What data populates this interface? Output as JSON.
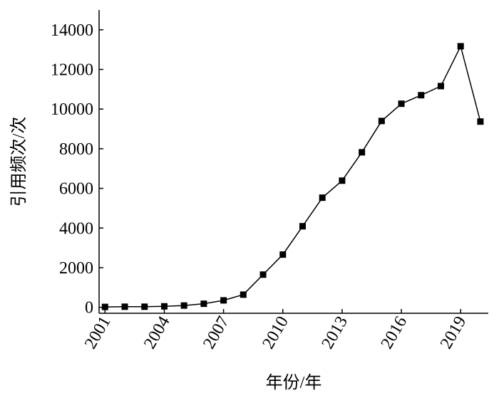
{
  "chart_data": {
    "type": "line",
    "x_label": "年份/年",
    "y_label": "引用频次/次",
    "x": [
      2001,
      2002,
      2003,
      2004,
      2005,
      2006,
      2007,
      2008,
      2009,
      2010,
      2011,
      2012,
      2013,
      2014,
      2015,
      2016,
      2017,
      2018,
      2019,
      2020
    ],
    "series": [
      {
        "name": "引用频次",
        "color": "#000000",
        "values": [
          20,
          30,
          30,
          50,
          90,
          180,
          350,
          640,
          1650,
          2660,
          4090,
          5530,
          6390,
          7820,
          9400,
          10270,
          10700,
          11160,
          13170,
          9370
        ]
      }
    ],
    "xlim": [
      2000.7,
      2020.4
    ],
    "xticks": [
      2001,
      2004,
      2007,
      2010,
      2013,
      2016,
      2019
    ],
    "ylim": [
      -300,
      15000
    ],
    "yticks": [
      0,
      2000,
      4000,
      6000,
      8000,
      10000,
      12000,
      14000
    ]
  }
}
